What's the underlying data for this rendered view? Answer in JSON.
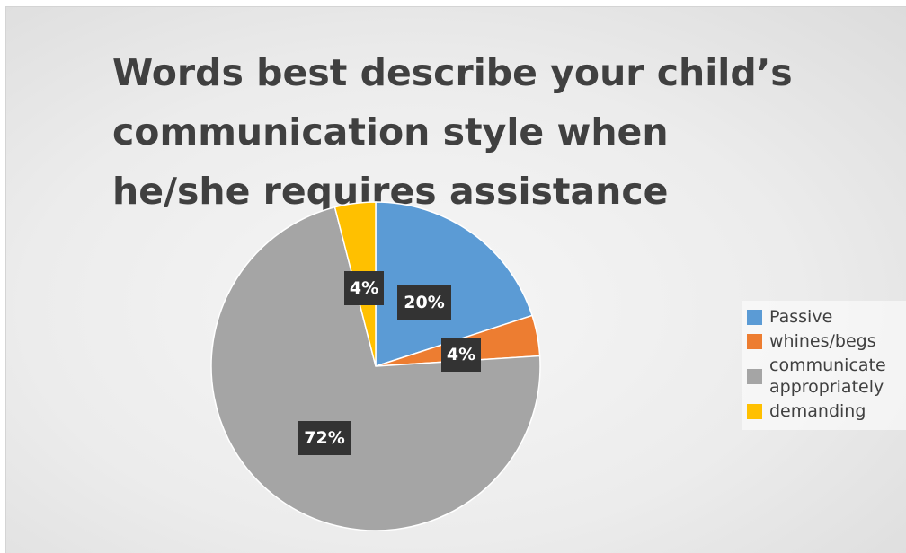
{
  "chart_data": {
    "type": "pie",
    "title": "Words best describe your child’s communication style when he/she requires assistance",
    "slices": [
      {
        "label": "Passive",
        "value": 20,
        "display": "20%",
        "color": "#5b9bd5"
      },
      {
        "label": "whines/begs",
        "value": 4,
        "display": "4%",
        "color": "#ed7d31"
      },
      {
        "label": "communicate appropriately",
        "value": 72,
        "display": "72%",
        "color": "#a5a5a5"
      },
      {
        "label": "demanding",
        "value": 4,
        "display": "4%",
        "color": "#ffc000"
      }
    ],
    "legend": {
      "position": "right"
    },
    "start_angle_deg": 0,
    "direction": "clockwise",
    "data_label_color": "#333333"
  }
}
